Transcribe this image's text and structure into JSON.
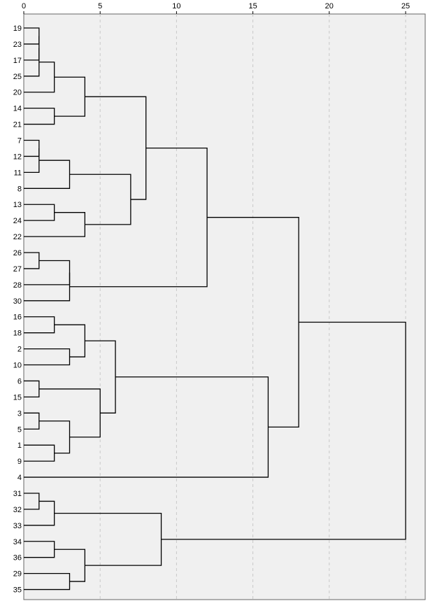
{
  "chart_data": {
    "type": "dendrogram",
    "title": "",
    "xlabel": "",
    "ylabel": "",
    "xlim": [
      0,
      26
    ],
    "x_ticks": [
      0,
      5,
      10,
      15,
      20,
      25
    ],
    "grid": "vertical dashed",
    "leaves": [
      19,
      23,
      17,
      25,
      20,
      14,
      21,
      7,
      12,
      11,
      8,
      13,
      24,
      22,
      26,
      27,
      28,
      30,
      16,
      18,
      2,
      10,
      6,
      15,
      3,
      5,
      1,
      9,
      4,
      31,
      32,
      33,
      34,
      36,
      29,
      35
    ],
    "merges": [
      {
        "left": "19",
        "right": "23",
        "height": 1
      },
      {
        "left": "m1",
        "right": "17",
        "height": 1
      },
      {
        "left": "m2",
        "right": "25",
        "height": 1
      },
      {
        "left": "m3",
        "right": "20",
        "height": 2
      },
      {
        "left": "14",
        "right": "21",
        "height": 2
      },
      {
        "left": "m4",
        "right": "m5",
        "height": 4
      },
      {
        "left": "7",
        "right": "12",
        "height": 1
      },
      {
        "left": "m7",
        "right": "11",
        "height": 1
      },
      {
        "left": "m8",
        "right": "8",
        "height": 3
      },
      {
        "left": "13",
        "right": "24",
        "height": 2
      },
      {
        "left": "m10",
        "right": "22",
        "height": 4
      },
      {
        "left": "m9",
        "right": "m11",
        "height": 7
      },
      {
        "left": "m6",
        "right": "m12",
        "height": 8
      },
      {
        "left": "26",
        "right": "27",
        "height": 1
      },
      {
        "left": "m14",
        "right": "28",
        "height": 3
      },
      {
        "left": "m15",
        "right": "30",
        "height": 3
      },
      {
        "left": "m13",
        "right": "m16",
        "height": 12
      },
      {
        "left": "16",
        "right": "18",
        "height": 2
      },
      {
        "left": "2",
        "right": "10",
        "height": 3
      },
      {
        "left": "m18",
        "right": "m19",
        "height": 4
      },
      {
        "left": "6",
        "right": "15",
        "height": 1
      },
      {
        "left": "3",
        "right": "5",
        "height": 1
      },
      {
        "left": "1",
        "right": "9",
        "height": 2
      },
      {
        "left": "m22",
        "right": "m23",
        "height": 3
      },
      {
        "left": "m21",
        "right": "m24",
        "height": 5
      },
      {
        "left": "m20",
        "right": "m25",
        "height": 6
      },
      {
        "left": "m26",
        "right": "4",
        "height": 16
      },
      {
        "left": "m17",
        "right": "m27",
        "height": 18
      },
      {
        "left": "31",
        "right": "32",
        "height": 1
      },
      {
        "left": "m29",
        "right": "33",
        "height": 2
      },
      {
        "left": "34",
        "right": "36",
        "height": 2
      },
      {
        "left": "29",
        "right": "35",
        "height": 3
      },
      {
        "left": "m31",
        "right": "m32",
        "height": 4
      },
      {
        "left": "m30",
        "right": "m33",
        "height": 9
      },
      {
        "left": "m28",
        "right": "m34",
        "height": 25
      }
    ]
  }
}
